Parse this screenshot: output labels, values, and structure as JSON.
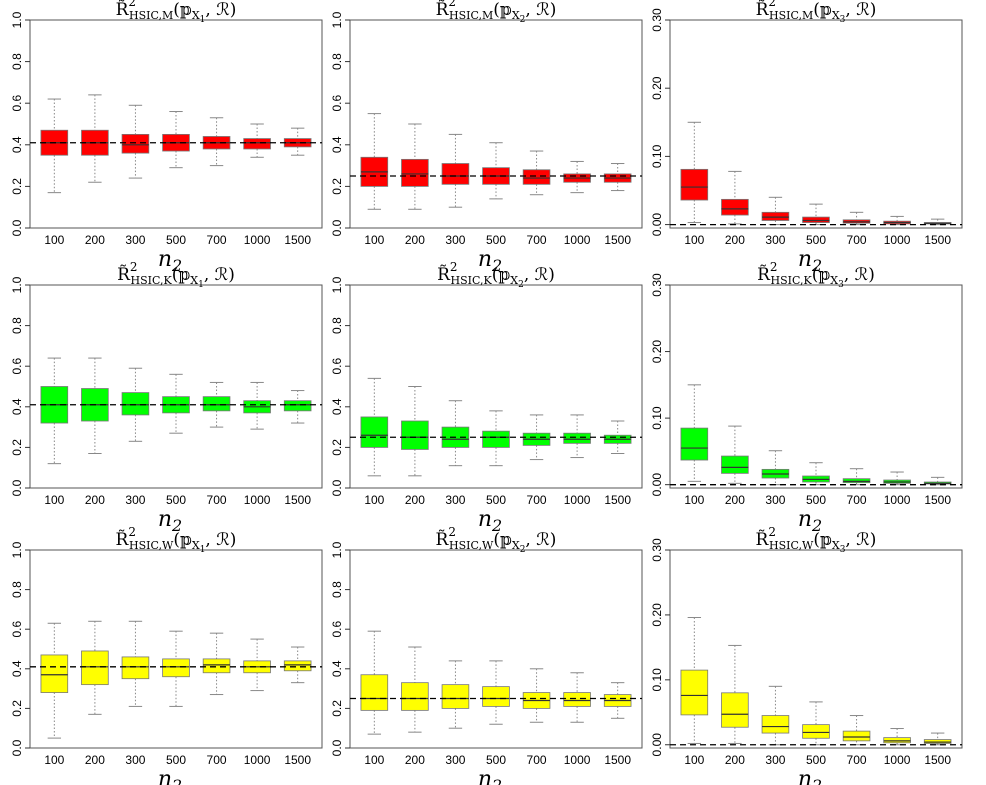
{
  "figure": {
    "x_axis_label": "n",
    "x_axis_label_subscript": "2",
    "colors": {
      "red": "#ff0000",
      "green": "#00ff00",
      "yellow": "#ffff00",
      "whisker": "#888888",
      "reference_line": "#000000"
    }
  },
  "chart_data": [
    {
      "type": "box",
      "title": "R̃²HSIC,M(PX1, R)",
      "title_parts": {
        "index": "HSIC,M",
        "arg": "X",
        "arg_sub": "1"
      },
      "categories": [
        "100",
        "200",
        "300",
        "500",
        "700",
        "1000",
        "1500"
      ],
      "y_ticks": [
        "0.0",
        "0.2",
        "0.4",
        "0.6",
        "0.8",
        "1.0"
      ],
      "ylim": [
        0,
        1.0
      ],
      "reference_line": 0.41,
      "color": "#ff0000",
      "boxes": [
        {
          "min": 0.17,
          "q1": 0.35,
          "median": 0.41,
          "q3": 0.47,
          "max": 0.62
        },
        {
          "min": 0.22,
          "q1": 0.35,
          "median": 0.41,
          "q3": 0.47,
          "max": 0.64
        },
        {
          "min": 0.24,
          "q1": 0.36,
          "median": 0.4,
          "q3": 0.45,
          "max": 0.59
        },
        {
          "min": 0.29,
          "q1": 0.37,
          "median": 0.41,
          "q3": 0.45,
          "max": 0.56
        },
        {
          "min": 0.3,
          "q1": 0.38,
          "median": 0.41,
          "q3": 0.44,
          "max": 0.53
        },
        {
          "min": 0.34,
          "q1": 0.38,
          "median": 0.41,
          "q3": 0.43,
          "max": 0.5
        },
        {
          "min": 0.35,
          "q1": 0.39,
          "median": 0.41,
          "q3": 0.43,
          "max": 0.48
        }
      ]
    },
    {
      "type": "box",
      "title": "R̃²HSIC,M(PX2, R)",
      "title_parts": {
        "index": "HSIC,M",
        "arg": "X",
        "arg_sub": "2"
      },
      "categories": [
        "100",
        "200",
        "300",
        "500",
        "700",
        "1000",
        "1500"
      ],
      "y_ticks": [
        "0.0",
        "0.2",
        "0.4",
        "0.6",
        "0.8",
        "1.0"
      ],
      "ylim": [
        0,
        1.0
      ],
      "reference_line": 0.25,
      "color": "#ff0000",
      "boxes": [
        {
          "min": 0.09,
          "q1": 0.2,
          "median": 0.27,
          "q3": 0.34,
          "max": 0.55
        },
        {
          "min": 0.09,
          "q1": 0.2,
          "median": 0.26,
          "q3": 0.33,
          "max": 0.5
        },
        {
          "min": 0.1,
          "q1": 0.21,
          "median": 0.25,
          "q3": 0.31,
          "max": 0.45
        },
        {
          "min": 0.14,
          "q1": 0.21,
          "median": 0.25,
          "q3": 0.29,
          "max": 0.41
        },
        {
          "min": 0.16,
          "q1": 0.21,
          "median": 0.24,
          "q3": 0.28,
          "max": 0.37
        },
        {
          "min": 0.17,
          "q1": 0.22,
          "median": 0.24,
          "q3": 0.26,
          "max": 0.32
        },
        {
          "min": 0.18,
          "q1": 0.22,
          "median": 0.24,
          "q3": 0.26,
          "max": 0.31
        }
      ]
    },
    {
      "type": "box",
      "title": "R̃²HSIC,M(PX3, R)",
      "title_parts": {
        "index": "HSIC,M",
        "arg": "X",
        "arg_sub": "3"
      },
      "categories": [
        "100",
        "200",
        "300",
        "500",
        "700",
        "1000",
        "1500"
      ],
      "y_ticks": [
        "0.00",
        "0.10",
        "0.20",
        "0.30"
      ],
      "ylim": [
        -0.005,
        0.3
      ],
      "reference_line": 0.0,
      "color": "#ff0000",
      "boxes": [
        {
          "min": 0.003,
          "q1": 0.036,
          "median": 0.055,
          "q3": 0.081,
          "max": 0.15
        },
        {
          "min": 0.001,
          "q1": 0.014,
          "median": 0.023,
          "q3": 0.037,
          "max": 0.078
        },
        {
          "min": 0.0,
          "q1": 0.006,
          "median": 0.011,
          "q3": 0.018,
          "max": 0.04
        },
        {
          "min": 0.0,
          "q1": 0.003,
          "median": 0.006,
          "q3": 0.011,
          "max": 0.03
        },
        {
          "min": 0.0,
          "q1": 0.002,
          "median": 0.004,
          "q3": 0.007,
          "max": 0.018
        },
        {
          "min": 0.0,
          "q1": 0.001,
          "median": 0.003,
          "q3": 0.005,
          "max": 0.012
        },
        {
          "min": 0.0,
          "q1": 0.001,
          "median": 0.002,
          "q3": 0.003,
          "max": 0.008
        }
      ]
    },
    {
      "type": "box",
      "title": "R̃²HSIC,K(PX1, R)",
      "title_parts": {
        "index": "HSIC,K",
        "arg": "X",
        "arg_sub": "1"
      },
      "categories": [
        "100",
        "200",
        "300",
        "500",
        "700",
        "1000",
        "1500"
      ],
      "y_ticks": [
        "0.0",
        "0.2",
        "0.4",
        "0.6",
        "0.8",
        "1.0"
      ],
      "ylim": [
        0,
        1.0
      ],
      "reference_line": 0.41,
      "color": "#00ff00",
      "boxes": [
        {
          "min": 0.12,
          "q1": 0.32,
          "median": 0.41,
          "q3": 0.5,
          "max": 0.64
        },
        {
          "min": 0.17,
          "q1": 0.33,
          "median": 0.41,
          "q3": 0.49,
          "max": 0.64
        },
        {
          "min": 0.23,
          "q1": 0.36,
          "median": 0.41,
          "q3": 0.47,
          "max": 0.59
        },
        {
          "min": 0.27,
          "q1": 0.37,
          "median": 0.41,
          "q3": 0.45,
          "max": 0.56
        },
        {
          "min": 0.3,
          "q1": 0.38,
          "median": 0.41,
          "q3": 0.45,
          "max": 0.52
        },
        {
          "min": 0.29,
          "q1": 0.37,
          "median": 0.4,
          "q3": 0.43,
          "max": 0.52
        },
        {
          "min": 0.32,
          "q1": 0.38,
          "median": 0.41,
          "q3": 0.43,
          "max": 0.48
        }
      ]
    },
    {
      "type": "box",
      "title": "R̃²HSIC,K(PX2, R)",
      "title_parts": {
        "index": "HSIC,K",
        "arg": "X",
        "arg_sub": "2"
      },
      "categories": [
        "100",
        "200",
        "300",
        "500",
        "700",
        "1000",
        "1500"
      ],
      "y_ticks": [
        "0.0",
        "0.2",
        "0.4",
        "0.6",
        "0.8",
        "1.0"
      ],
      "ylim": [
        0,
        1.0
      ],
      "reference_line": 0.25,
      "color": "#00ff00",
      "boxes": [
        {
          "min": 0.06,
          "q1": 0.2,
          "median": 0.26,
          "q3": 0.35,
          "max": 0.54
        },
        {
          "min": 0.06,
          "q1": 0.19,
          "median": 0.25,
          "q3": 0.33,
          "max": 0.5
        },
        {
          "min": 0.11,
          "q1": 0.2,
          "median": 0.24,
          "q3": 0.3,
          "max": 0.43
        },
        {
          "min": 0.11,
          "q1": 0.2,
          "median": 0.25,
          "q3": 0.28,
          "max": 0.38
        },
        {
          "min": 0.14,
          "q1": 0.21,
          "median": 0.24,
          "q3": 0.27,
          "max": 0.36
        },
        {
          "min": 0.15,
          "q1": 0.22,
          "median": 0.24,
          "q3": 0.27,
          "max": 0.36
        },
        {
          "min": 0.17,
          "q1": 0.22,
          "median": 0.24,
          "q3": 0.26,
          "max": 0.33
        }
      ]
    },
    {
      "type": "box",
      "title": "R̃²HSIC,K(PX3, R)",
      "title_parts": {
        "index": "HSIC,K",
        "arg": "X",
        "arg_sub": "3"
      },
      "categories": [
        "100",
        "200",
        "300",
        "500",
        "700",
        "1000",
        "1500"
      ],
      "y_ticks": [
        "0.00",
        "0.10",
        "0.20",
        "0.30"
      ],
      "ylim": [
        -0.005,
        0.3
      ],
      "reference_line": 0.0,
      "color": "#00ff00",
      "boxes": [
        {
          "min": 0.005,
          "q1": 0.037,
          "median": 0.055,
          "q3": 0.085,
          "max": 0.15
        },
        {
          "min": 0.002,
          "q1": 0.017,
          "median": 0.026,
          "q3": 0.043,
          "max": 0.088
        },
        {
          "min": 0.0,
          "q1": 0.01,
          "median": 0.016,
          "q3": 0.023,
          "max": 0.051
        },
        {
          "min": 0.0,
          "q1": 0.004,
          "median": 0.008,
          "q3": 0.013,
          "max": 0.033
        },
        {
          "min": 0.0,
          "q1": 0.003,
          "median": 0.005,
          "q3": 0.009,
          "max": 0.024
        },
        {
          "min": 0.0,
          "q1": 0.002,
          "median": 0.004,
          "q3": 0.007,
          "max": 0.019
        },
        {
          "min": 0.0,
          "q1": 0.001,
          "median": 0.002,
          "q3": 0.004,
          "max": 0.011
        }
      ]
    },
    {
      "type": "box",
      "title": "R̃²HSIC,W(PX1, R)",
      "title_parts": {
        "index": "HSIC,W",
        "arg": "X",
        "arg_sub": "1"
      },
      "categories": [
        "100",
        "200",
        "300",
        "500",
        "700",
        "1000",
        "1500"
      ],
      "y_ticks": [
        "0.0",
        "0.2",
        "0.4",
        "0.6",
        "0.8",
        "1.0"
      ],
      "ylim": [
        0,
        1.0
      ],
      "reference_line": 0.41,
      "color": "#ffff00",
      "boxes": [
        {
          "min": 0.05,
          "q1": 0.28,
          "median": 0.37,
          "q3": 0.47,
          "max": 0.63
        },
        {
          "min": 0.17,
          "q1": 0.32,
          "median": 0.41,
          "q3": 0.49,
          "max": 0.64
        },
        {
          "min": 0.21,
          "q1": 0.35,
          "median": 0.41,
          "q3": 0.46,
          "max": 0.64
        },
        {
          "min": 0.21,
          "q1": 0.36,
          "median": 0.41,
          "q3": 0.45,
          "max": 0.59
        },
        {
          "min": 0.27,
          "q1": 0.38,
          "median": 0.42,
          "q3": 0.45,
          "max": 0.58
        },
        {
          "min": 0.29,
          "q1": 0.38,
          "median": 0.41,
          "q3": 0.44,
          "max": 0.55
        },
        {
          "min": 0.33,
          "q1": 0.39,
          "median": 0.42,
          "q3": 0.44,
          "max": 0.51
        }
      ]
    },
    {
      "type": "box",
      "title": "R̃²HSIC,W(PX2, R)",
      "title_parts": {
        "index": "HSIC,W",
        "arg": "X",
        "arg_sub": "2"
      },
      "categories": [
        "100",
        "200",
        "300",
        "500",
        "700",
        "1000",
        "1500"
      ],
      "y_ticks": [
        "0.0",
        "0.2",
        "0.4",
        "0.6",
        "0.8",
        "1.0"
      ],
      "ylim": [
        0,
        1.0
      ],
      "reference_line": 0.25,
      "color": "#ffff00",
      "boxes": [
        {
          "min": 0.07,
          "q1": 0.19,
          "median": 0.25,
          "q3": 0.37,
          "max": 0.59
        },
        {
          "min": 0.08,
          "q1": 0.19,
          "median": 0.25,
          "q3": 0.33,
          "max": 0.51
        },
        {
          "min": 0.1,
          "q1": 0.2,
          "median": 0.25,
          "q3": 0.32,
          "max": 0.44
        },
        {
          "min": 0.12,
          "q1": 0.21,
          "median": 0.25,
          "q3": 0.31,
          "max": 0.44
        },
        {
          "min": 0.13,
          "q1": 0.2,
          "median": 0.24,
          "q3": 0.28,
          "max": 0.4
        },
        {
          "min": 0.13,
          "q1": 0.21,
          "median": 0.24,
          "q3": 0.28,
          "max": 0.38
        },
        {
          "min": 0.15,
          "q1": 0.21,
          "median": 0.24,
          "q3": 0.27,
          "max": 0.33
        }
      ]
    },
    {
      "type": "box",
      "title": "R̃²HSIC,W(PX3, R)",
      "title_parts": {
        "index": "HSIC,W",
        "arg": "X",
        "arg_sub": "3"
      },
      "categories": [
        "100",
        "200",
        "300",
        "500",
        "700",
        "1000",
        "1500"
      ],
      "y_ticks": [
        "0.00",
        "0.10",
        "0.20",
        "0.30"
      ],
      "ylim": [
        -0.005,
        0.3
      ],
      "reference_line": 0.0,
      "color": "#ffff00",
      "boxes": [
        {
          "min": 0.002,
          "q1": 0.046,
          "median": 0.076,
          "q3": 0.115,
          "max": 0.196
        },
        {
          "min": 0.002,
          "q1": 0.027,
          "median": 0.047,
          "q3": 0.08,
          "max": 0.153
        },
        {
          "min": 0.0,
          "q1": 0.018,
          "median": 0.028,
          "q3": 0.045,
          "max": 0.09
        },
        {
          "min": 0.0,
          "q1": 0.01,
          "median": 0.019,
          "q3": 0.031,
          "max": 0.066
        },
        {
          "min": 0.0,
          "q1": 0.006,
          "median": 0.012,
          "q3": 0.021,
          "max": 0.045
        },
        {
          "min": 0.0,
          "q1": 0.003,
          "median": 0.006,
          "q3": 0.011,
          "max": 0.025
        },
        {
          "min": 0.0,
          "q1": 0.002,
          "median": 0.004,
          "q3": 0.008,
          "max": 0.018
        }
      ]
    }
  ]
}
